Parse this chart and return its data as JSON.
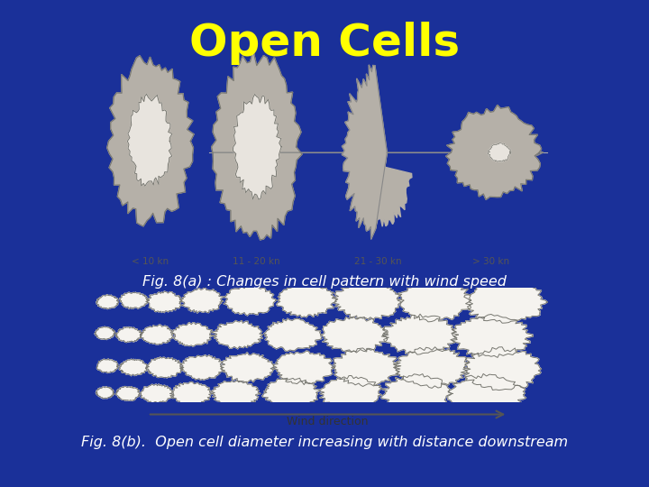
{
  "title": "Open Cells",
  "title_color": "#FFFF00",
  "title_fontsize": 36,
  "bg_color": "#1a3099",
  "fig8a_caption": "Fig. 8(a) : Changes in cell pattern with wind speed",
  "fig8b_caption": "Fig. 8(b).  Open cell diameter increasing with distance downstream",
  "caption_color": "#FFFFFF",
  "caption_fontsize": 11.5,
  "panel_top_bg": "#f2efe9",
  "panel_bot_bg": "#b8b5ae",
  "wind_arrow_bg": "#e8e5df",
  "wind_labels": [
    "< 10 kn",
    "11 - 20 kn",
    "21 - 30 kn",
    "> 30 kn"
  ],
  "wind_direction_label": "Wind direction",
  "gray_outer": "#b5b0a8",
  "gray_inner": "#e8e4de",
  "cell_white": "#f5f3ef",
  "cell_border": "#777770"
}
